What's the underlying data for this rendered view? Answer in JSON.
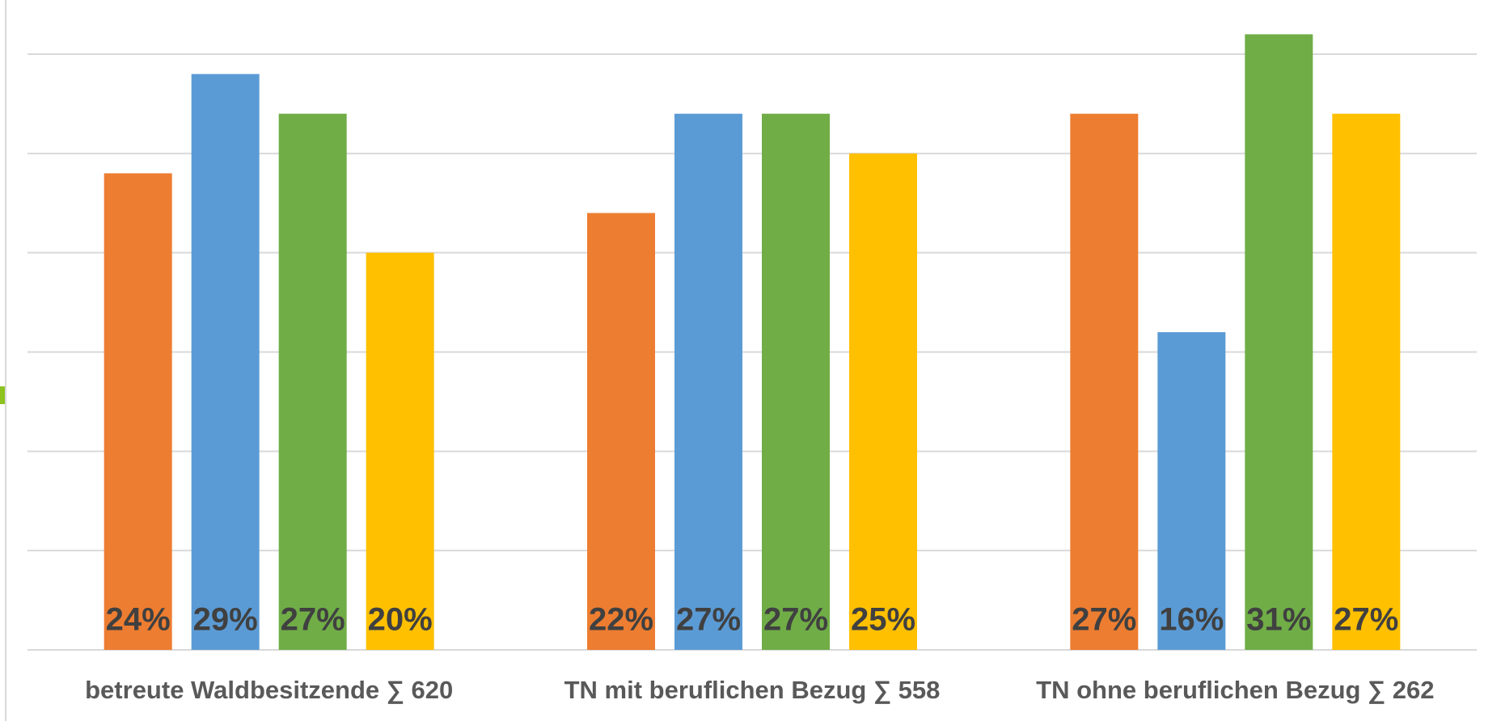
{
  "chart_data": {
    "type": "bar",
    "categories": [
      "betreute Waldbesitzende ∑ 620",
      "TN mit beruflichen Bezug ∑ 558",
      "TN ohne beruflichen Bezug ∑ 262"
    ],
    "series": [
      {
        "color": "#ED7D31",
        "values": [
          24,
          22,
          27
        ],
        "value_labels": [
          "24%",
          "22%",
          "27%"
        ]
      },
      {
        "color": "#5B9BD5",
        "values": [
          29,
          27,
          16
        ],
        "value_labels": [
          "29%",
          "27%",
          "16%"
        ]
      },
      {
        "color": "#70AD47",
        "values": [
          27,
          27,
          31
        ],
        "value_labels": [
          "27%",
          "27%",
          "31%"
        ]
      },
      {
        "color": "#FFC000",
        "values": [
          20,
          25,
          27
        ],
        "value_labels": [
          "20%",
          "25%",
          "27%"
        ]
      }
    ],
    "ylim": [
      0,
      30
    ],
    "yticks": [
      0,
      5,
      10,
      15,
      20,
      25,
      30
    ],
    "grid": true
  }
}
